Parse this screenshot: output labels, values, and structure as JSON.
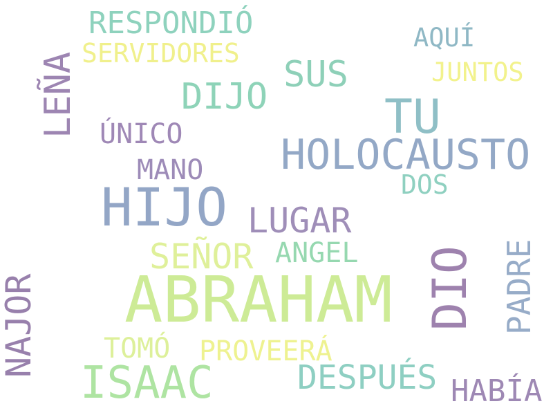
{
  "words": [
    {
      "text": "RESPONDIÓ",
      "color": "#8ed2bd"
    },
    {
      "text": "SERVIDORES",
      "color": "#f0f08c"
    },
    {
      "text": "AQUÍ",
      "color": "#8fb8c5"
    },
    {
      "text": "LEÑA",
      "color": "#9d85b2"
    },
    {
      "text": "SUS",
      "color": "#8ed0b8"
    },
    {
      "text": "JUNTOS",
      "color": "#f2f28c"
    },
    {
      "text": "DIJO",
      "color": "#8ed3b8"
    },
    {
      "text": "TU",
      "color": "#8fbfc6"
    },
    {
      "text": "ÚNICO",
      "color": "#9f88b6"
    },
    {
      "text": "HOLOCAUSTO",
      "color": "#93a8c6"
    },
    {
      "text": "MANO",
      "color": "#9d8bb8"
    },
    {
      "text": "DOS",
      "color": "#8fd0c0"
    },
    {
      "text": "HIJO",
      "color": "#93a6c6"
    },
    {
      "text": "LUGAR",
      "color": "#9f8eb8"
    },
    {
      "text": "SEÑOR",
      "color": "#dff09a"
    },
    {
      "text": "ANGEL",
      "color": "#96d8b0"
    },
    {
      "text": "DIO",
      "color": "#9e82ae"
    },
    {
      "text": "PADRE",
      "color": "#97acc8"
    },
    {
      "text": "NAJOR",
      "color": "#9880ac"
    },
    {
      "text": "ABRAHAM",
      "color": "#cdeb96"
    },
    {
      "text": "TOMÓ",
      "color": "#ddf09a"
    },
    {
      "text": "PROVEERÁ",
      "color": "#eef290"
    },
    {
      "text": "ISAAC",
      "color": "#aee4a2"
    },
    {
      "text": "DESPUÉS",
      "color": "#8ecfc2"
    },
    {
      "text": "HABÍA",
      "color": "#9e88b4"
    }
  ]
}
